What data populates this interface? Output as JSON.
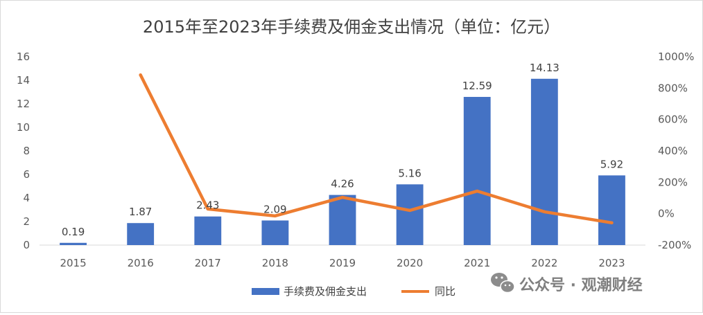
{
  "chart_data": {
    "type": "bar",
    "title": "2015年至2023年手续费及佣金支出情况（单位：亿元）",
    "categories": [
      "2015",
      "2016",
      "2017",
      "2018",
      "2019",
      "2020",
      "2021",
      "2022",
      "2023"
    ],
    "series": [
      {
        "name": "手续费及佣金支出",
        "type": "bar",
        "axis": "left",
        "color": "#4472C4",
        "values": [
          0.19,
          1.87,
          2.43,
          2.09,
          4.26,
          5.16,
          12.59,
          14.13,
          5.92
        ],
        "labels": [
          "0.19",
          "1.87",
          "2.43",
          "2.09",
          "4.26",
          "5.16",
          "12.59",
          "14.13",
          "5.92"
        ]
      },
      {
        "name": "同比",
        "type": "line",
        "axis": "right",
        "color": "#ED7D31",
        "values": [
          null,
          884,
          30,
          -14,
          104,
          21,
          144,
          12,
          -58
        ]
      }
    ],
    "ylim": [
      0,
      16
    ],
    "yticks": [
      0,
      2,
      4,
      6,
      8,
      10,
      12,
      14,
      16
    ],
    "ytick_labels": [
      "0",
      "2",
      "4",
      "6",
      "8",
      "10",
      "12",
      "14",
      "16"
    ],
    "y2lim": [
      -200,
      1000
    ],
    "y2ticks": [
      -200,
      0,
      200,
      400,
      600,
      800,
      1000
    ],
    "y2tick_labels": [
      "-200%",
      "0%",
      "200%",
      "400%",
      "600%",
      "800%",
      "1000%"
    ],
    "legend_position": "bottom",
    "grid": false
  },
  "watermark": {
    "text": "公众号 · 观潮财经",
    "icon": "wechat-icon"
  }
}
